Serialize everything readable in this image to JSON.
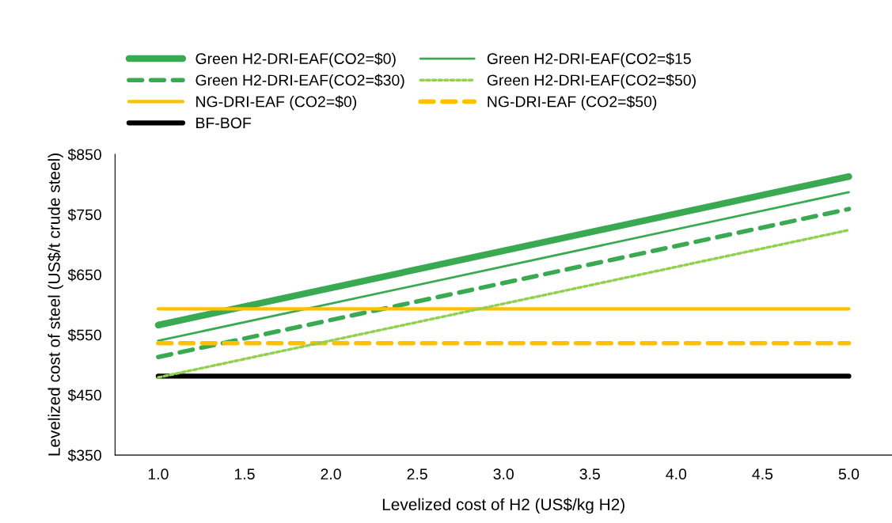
{
  "chart_data": {
    "type": "line",
    "xlabel": "Levelized cost of H2 (US$/kg H2)",
    "ylabel": "Levelized cost of steel (US$/t crude steel)",
    "x": [
      1.0,
      5.0
    ],
    "series": [
      {
        "name": "Green H2-DRI-EAF(CO2=$0)",
        "color": "#3aaa52",
        "values": [
          566,
          813
        ],
        "line_style": "solid"
      },
      {
        "name": "Green H2-DRI-EAF(CO2=$15",
        "color": "#3aaa52",
        "values": [
          540,
          787
        ],
        "line_style": "solid"
      },
      {
        "name": "Green H2-DRI-EAF(CO2=$30)",
        "color": "#3aaa52",
        "values": [
          513,
          759
        ],
        "line_style": "dashed"
      },
      {
        "name": "Green H2-DRI-EAF(CO2=$50)",
        "color": "#92d050",
        "values": [
          479,
          724
        ],
        "line_style": "dotted"
      },
      {
        "name": "NG-DRI-EAF (CO2=$0)",
        "color": "#ffc000",
        "values": [
          593,
          593
        ],
        "line_style": "solid"
      },
      {
        "name": "NG-DRI-EAF (CO2=$50)",
        "color": "#ffc000",
        "values": [
          536,
          536
        ],
        "line_style": "dashed"
      },
      {
        "name": "BF-BOF",
        "color": "#000000",
        "values": [
          481,
          481
        ],
        "line_style": "solid"
      }
    ],
    "xlim": [
      0.75,
      5.25
    ],
    "xticks": [
      {
        "value": 1.0,
        "label": "1.0"
      },
      {
        "value": 1.5,
        "label": "1.5"
      },
      {
        "value": 2.0,
        "label": "2.0"
      },
      {
        "value": 2.5,
        "label": "2.5"
      },
      {
        "value": 3.0,
        "label": "3.0"
      },
      {
        "value": 3.5,
        "label": "3.5"
      },
      {
        "value": 4.0,
        "label": "4.0"
      },
      {
        "value": 4.5,
        "label": "4.5"
      },
      {
        "value": 5.0,
        "label": "5.0"
      }
    ],
    "ylim": [
      350,
      850
    ],
    "yticks": [
      {
        "value": 350,
        "label": "$350"
      },
      {
        "value": 450,
        "label": "$450"
      },
      {
        "value": 550,
        "label": "$550"
      },
      {
        "value": 650,
        "label": "$650"
      },
      {
        "value": 750,
        "label": "$750"
      },
      {
        "value": 850,
        "label": "$850"
      }
    ],
    "grid": false,
    "legend": "top",
    "marker": "none"
  }
}
